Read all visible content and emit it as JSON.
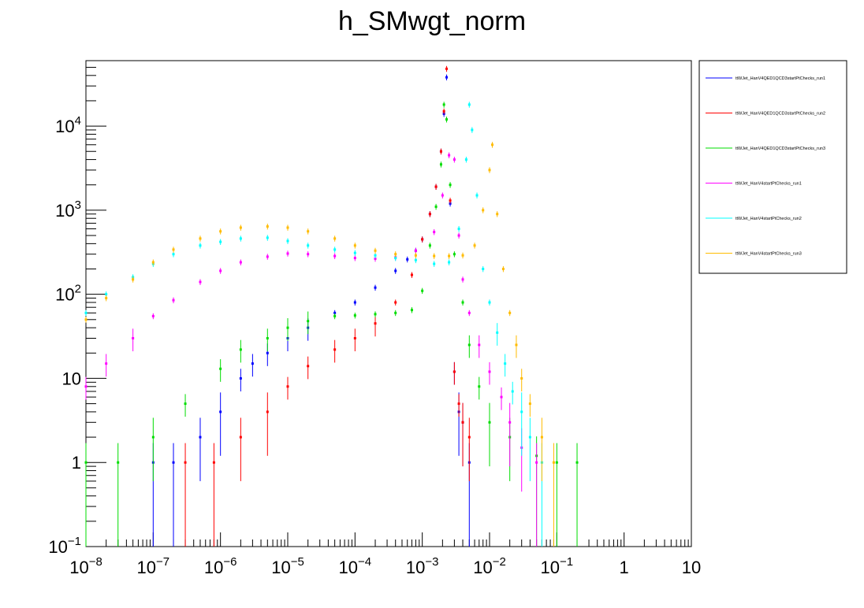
{
  "chart_data": {
    "type": "scatter",
    "title": "h_SMwgt_norm",
    "xlabel": "",
    "ylabel": "",
    "xscale": "log",
    "yscale": "log",
    "xlim": [
      1e-08,
      10
    ],
    "ylim": [
      0.1,
      60000
    ],
    "grid": false,
    "legend_position": "top-right, outside plot",
    "x_ticks": [
      {
        "value": 1e-08,
        "base": "10",
        "exp": "−8"
      },
      {
        "value": 1e-07,
        "base": "10",
        "exp": "−7"
      },
      {
        "value": 1e-06,
        "base": "10",
        "exp": "−6"
      },
      {
        "value": 1e-05,
        "base": "10",
        "exp": "−5"
      },
      {
        "value": 0.0001,
        "base": "10",
        "exp": "−4"
      },
      {
        "value": 0.001,
        "base": "10",
        "exp": "−3"
      },
      {
        "value": 0.01,
        "base": "10",
        "exp": "−2"
      },
      {
        "value": 0.1,
        "base": "10",
        "exp": "−1"
      },
      {
        "value": 1,
        "base": "1",
        "exp": ""
      },
      {
        "value": 10,
        "base": "10",
        "exp": ""
      }
    ],
    "y_ticks": [
      {
        "value": 0.1,
        "base": "10",
        "exp": "−1"
      },
      {
        "value": 1,
        "base": "1",
        "exp": ""
      },
      {
        "value": 10,
        "base": "10",
        "exp": ""
      },
      {
        "value": 100,
        "base": "10",
        "exp": "2"
      },
      {
        "value": 1000,
        "base": "10",
        "exp": "3"
      },
      {
        "value": 10000,
        "base": "10",
        "exp": "4"
      }
    ],
    "series": [
      {
        "name": "ttWJet_HanV4QED1QCD3startPtChecks_run1",
        "color": "#0000ff",
        "points": [
          [
            1e-07,
            1
          ],
          [
            2e-07,
            1
          ],
          [
            5e-07,
            2
          ],
          [
            1e-06,
            4
          ],
          [
            2e-06,
            10
          ],
          [
            3e-06,
            15
          ],
          [
            5e-06,
            20
          ],
          [
            1e-05,
            30
          ],
          [
            2e-05,
            40
          ],
          [
            5e-05,
            60
          ],
          [
            0.0001,
            80
          ],
          [
            0.0002,
            120
          ],
          [
            0.0004,
            190
          ],
          [
            0.0006,
            260
          ],
          [
            0.0008,
            330
          ],
          [
            0.001,
            450
          ],
          [
            0.0013,
            900
          ],
          [
            0.0016,
            1900
          ],
          [
            0.0019,
            5000
          ],
          [
            0.0021,
            14000
          ],
          [
            0.0023,
            38000
          ],
          [
            0.0026,
            1200
          ],
          [
            0.003,
            12
          ],
          [
            0.0035,
            4
          ],
          [
            0.004,
            3
          ],
          [
            0.005,
            1
          ]
        ]
      },
      {
        "name": "ttWJet_HanV4QED1QCD3startPtChecks_run2",
        "color": "#ff0000",
        "points": [
          [
            3e-07,
            1
          ],
          [
            8e-07,
            1
          ],
          [
            2e-06,
            2
          ],
          [
            5e-06,
            4
          ],
          [
            1e-05,
            8
          ],
          [
            2e-05,
            14
          ],
          [
            5e-05,
            22
          ],
          [
            0.0001,
            30
          ],
          [
            0.0002,
            45
          ],
          [
            0.0004,
            80
          ],
          [
            0.0007,
            170
          ],
          [
            0.001,
            450
          ],
          [
            0.0013,
            900
          ],
          [
            0.0016,
            1900
          ],
          [
            0.0019,
            5000
          ],
          [
            0.0021,
            15000
          ],
          [
            0.0023,
            48000
          ],
          [
            0.0026,
            1300
          ],
          [
            0.003,
            12
          ],
          [
            0.0035,
            5
          ],
          [
            0.004,
            3
          ],
          [
            0.005,
            2
          ]
        ]
      },
      {
        "name": "ttWJet_HanV4QED1QCD3startPtChecks_run3",
        "color": "#00dd00",
        "points": [
          [
            1e-08,
            1
          ],
          [
            3e-08,
            1
          ],
          [
            1e-07,
            2
          ],
          [
            3e-07,
            5
          ],
          [
            1e-06,
            13
          ],
          [
            2e-06,
            22
          ],
          [
            5e-06,
            30
          ],
          [
            1e-05,
            40
          ],
          [
            2e-05,
            48
          ],
          [
            5e-05,
            55
          ],
          [
            0.0001,
            56
          ],
          [
            0.0002,
            58
          ],
          [
            0.0004,
            60
          ],
          [
            0.0007,
            65
          ],
          [
            0.001,
            110
          ],
          [
            0.0013,
            380
          ],
          [
            0.0016,
            1100
          ],
          [
            0.0019,
            3500
          ],
          [
            0.0021,
            18000
          ],
          [
            0.0023,
            12000
          ],
          [
            0.0026,
            2000
          ],
          [
            0.003,
            300
          ],
          [
            0.004,
            80
          ],
          [
            0.005,
            25
          ],
          [
            0.007,
            8
          ],
          [
            0.01,
            3
          ],
          [
            0.02,
            2
          ],
          [
            0.05,
            1.2
          ],
          [
            0.1,
            1
          ],
          [
            0.2,
            1
          ]
        ]
      },
      {
        "name": "ttWJet_HanV4startPtChecks_run1",
        "color": "#ff00ff",
        "points": [
          [
            1e-08,
            8
          ],
          [
            2e-08,
            15
          ],
          [
            5e-08,
            30
          ],
          [
            1e-07,
            55
          ],
          [
            2e-07,
            85
          ],
          [
            5e-07,
            140
          ],
          [
            1e-06,
            190
          ],
          [
            2e-06,
            240
          ],
          [
            5e-06,
            280
          ],
          [
            1e-05,
            305
          ],
          [
            2e-05,
            300
          ],
          [
            5e-05,
            285
          ],
          [
            0.0001,
            270
          ],
          [
            0.0002,
            265
          ],
          [
            0.0004,
            275
          ],
          [
            0.0008,
            330
          ],
          [
            0.0015,
            550
          ],
          [
            0.002,
            1500
          ],
          [
            0.0025,
            4500
          ],
          [
            0.003,
            4000
          ],
          [
            0.0035,
            500
          ],
          [
            0.004,
            150
          ],
          [
            0.005,
            60
          ],
          [
            0.007,
            25
          ],
          [
            0.01,
            12
          ],
          [
            0.015,
            6
          ],
          [
            0.02,
            3
          ],
          [
            0.03,
            1.5
          ],
          [
            0.05,
            1
          ]
        ]
      },
      {
        "name": "ttWJet_HanV4startPtChecks_run2",
        "color": "#00ffff",
        "points": [
          [
            1e-08,
            60
          ],
          [
            2e-08,
            100
          ],
          [
            5e-08,
            160
          ],
          [
            1e-07,
            230
          ],
          [
            2e-07,
            300
          ],
          [
            5e-07,
            380
          ],
          [
            1e-06,
            420
          ],
          [
            2e-06,
            460
          ],
          [
            5e-06,
            470
          ],
          [
            1e-05,
            430
          ],
          [
            2e-05,
            380
          ],
          [
            5e-05,
            340
          ],
          [
            0.0001,
            310
          ],
          [
            0.0002,
            290
          ],
          [
            0.0004,
            270
          ],
          [
            0.0008,
            255
          ],
          [
            0.0015,
            230
          ],
          [
            0.0025,
            240
          ],
          [
            0.0035,
            600
          ],
          [
            0.0045,
            4000
          ],
          [
            0.005,
            18000
          ],
          [
            0.0055,
            9000
          ],
          [
            0.0065,
            1500
          ],
          [
            0.008,
            200
          ],
          [
            0.01,
            80
          ],
          [
            0.013,
            35
          ],
          [
            0.017,
            15
          ],
          [
            0.022,
            7
          ],
          [
            0.03,
            4
          ],
          [
            0.04,
            2
          ],
          [
            0.06,
            1
          ]
        ]
      },
      {
        "name": "ttWJet_HanV4startPtChecks_run3",
        "color": "#ffbb00",
        "points": [
          [
            1e-08,
            50
          ],
          [
            2e-08,
            90
          ],
          [
            5e-08,
            150
          ],
          [
            1e-07,
            240
          ],
          [
            2e-07,
            340
          ],
          [
            5e-07,
            460
          ],
          [
            1e-06,
            560
          ],
          [
            2e-06,
            620
          ],
          [
            5e-06,
            640
          ],
          [
            1e-05,
            620
          ],
          [
            2e-05,
            560
          ],
          [
            5e-05,
            460
          ],
          [
            0.0001,
            380
          ],
          [
            0.0002,
            330
          ],
          [
            0.0004,
            300
          ],
          [
            0.0008,
            290
          ],
          [
            0.0015,
            285
          ],
          [
            0.0025,
            285
          ],
          [
            0.004,
            290
          ],
          [
            0.006,
            380
          ],
          [
            0.008,
            1000
          ],
          [
            0.01,
            3000
          ],
          [
            0.011,
            6000
          ],
          [
            0.013,
            900
          ],
          [
            0.016,
            200
          ],
          [
            0.02,
            60
          ],
          [
            0.025,
            25
          ],
          [
            0.03,
            10
          ],
          [
            0.04,
            5
          ],
          [
            0.06,
            2
          ],
          [
            0.09,
            1
          ]
        ]
      }
    ]
  }
}
